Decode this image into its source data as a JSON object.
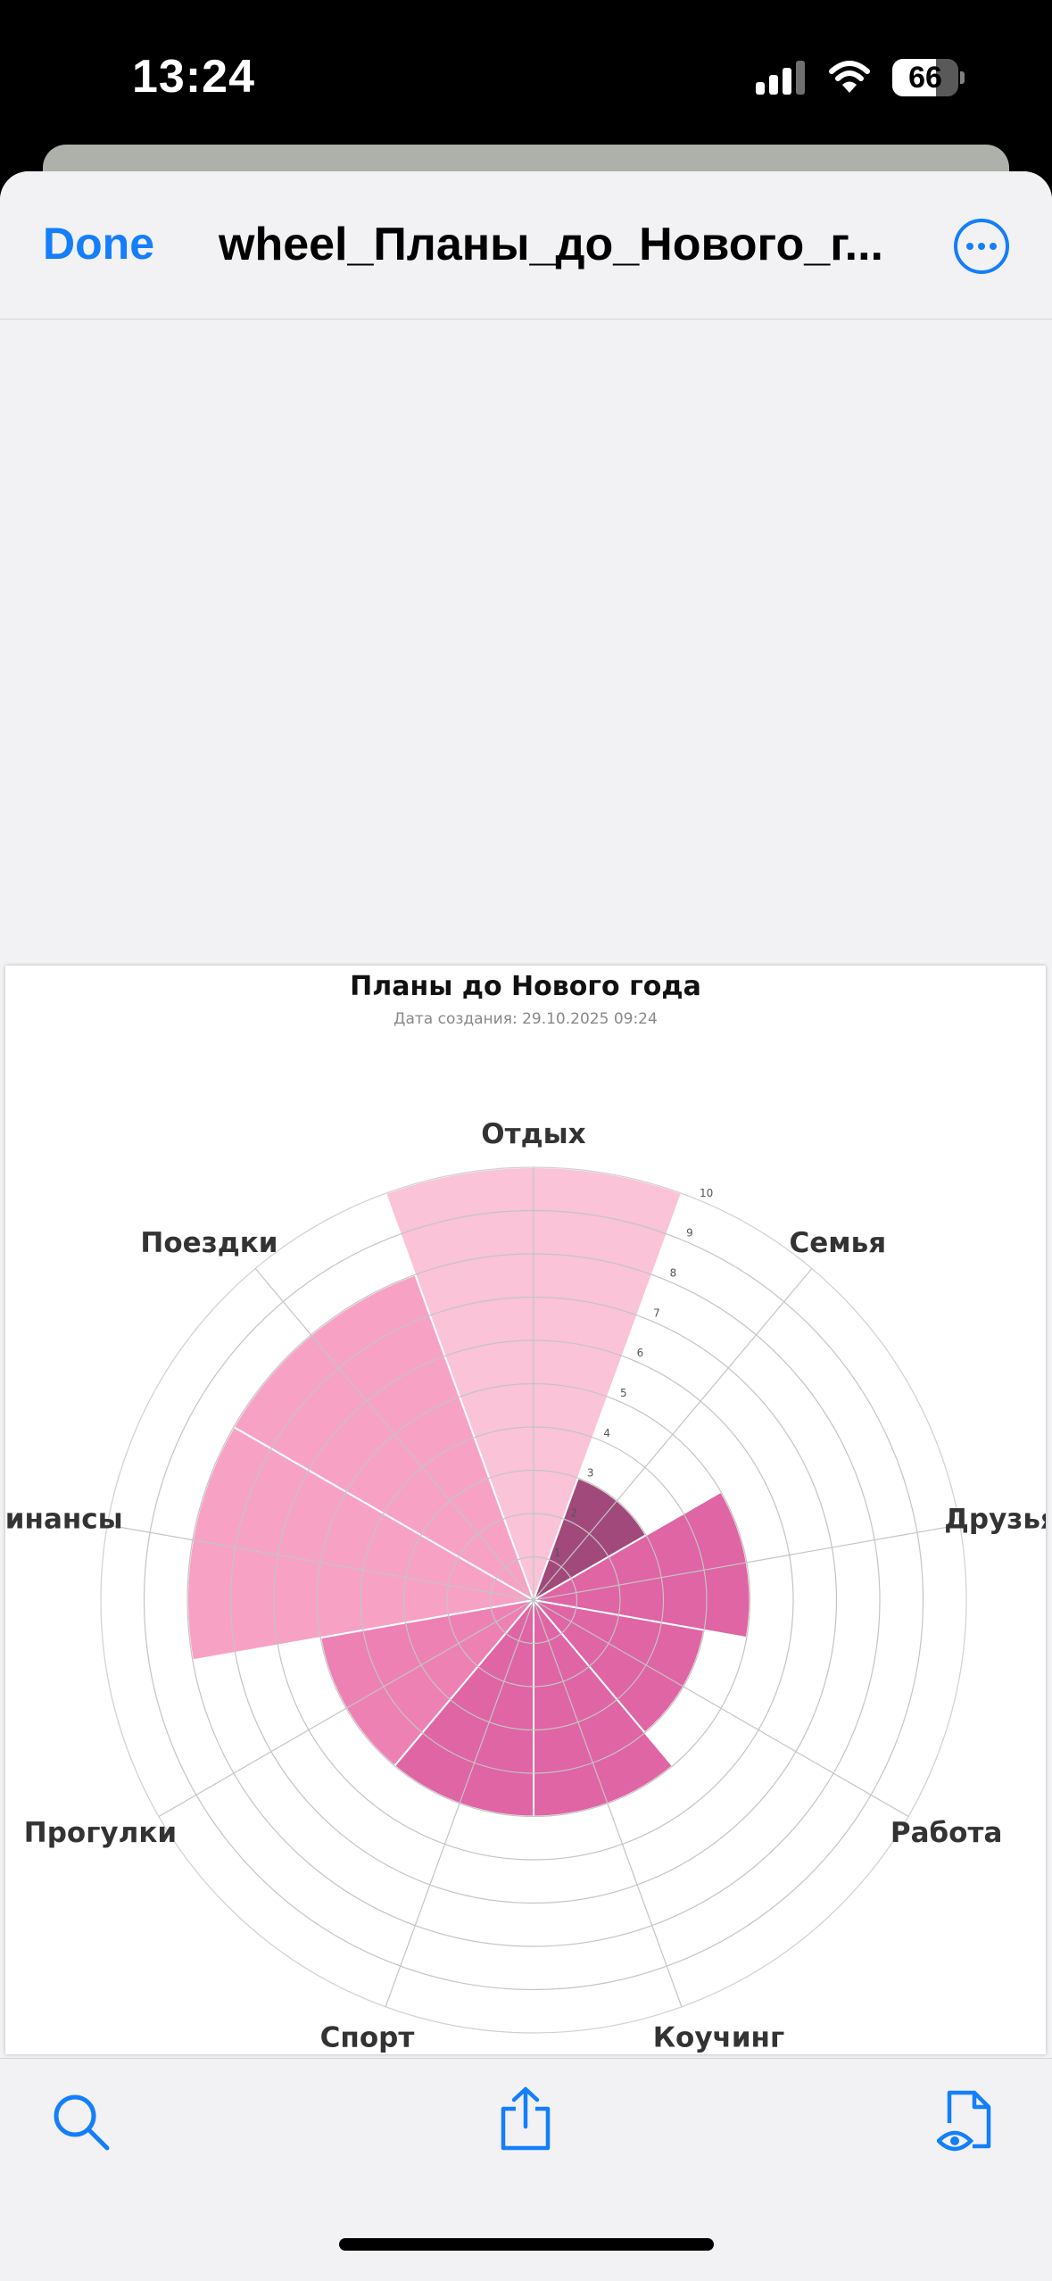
{
  "status_bar": {
    "time": "13:24",
    "battery_label": "66",
    "battery_level": 0.66,
    "icons": [
      "signal-icon",
      "wifi-icon",
      "battery-icon"
    ]
  },
  "nav": {
    "done_label": "Done",
    "title": "wheel_Планы_до_Нового_г...",
    "more_icon": "ellipsis-circle-icon"
  },
  "toolbar": {
    "icons": [
      "search-icon",
      "share-icon",
      "document-viewer-icon"
    ]
  },
  "colors": {
    "accent": "#147efb",
    "sheet": "#f2f2f4"
  },
  "chart_data": {
    "type": "polar-bar",
    "title": "Планы до Нового года",
    "subtitle": "Дата создания: 29.10.2025 09:24",
    "categories": [
      "Отдых",
      "Семья",
      "Друзья",
      "Работа",
      "Коучинг",
      "Спорт",
      "Прогулки",
      "Финансы",
      "Поездки"
    ],
    "values": [
      10,
      3,
      5,
      4,
      5,
      5,
      5,
      8,
      8
    ],
    "colors": [
      "#fac3d7",
      "#a1497b",
      "#df65a4",
      "#df65a4",
      "#df65a4",
      "#df65a4",
      "#ed81b4",
      "#f7a2c4",
      "#f7a2c4"
    ],
    "rlim": [
      0,
      10
    ],
    "radial_ticks": [
      "1",
      "2",
      "3",
      "4",
      "5",
      "6",
      "7",
      "8",
      "9",
      "10"
    ],
    "grid": true
  }
}
